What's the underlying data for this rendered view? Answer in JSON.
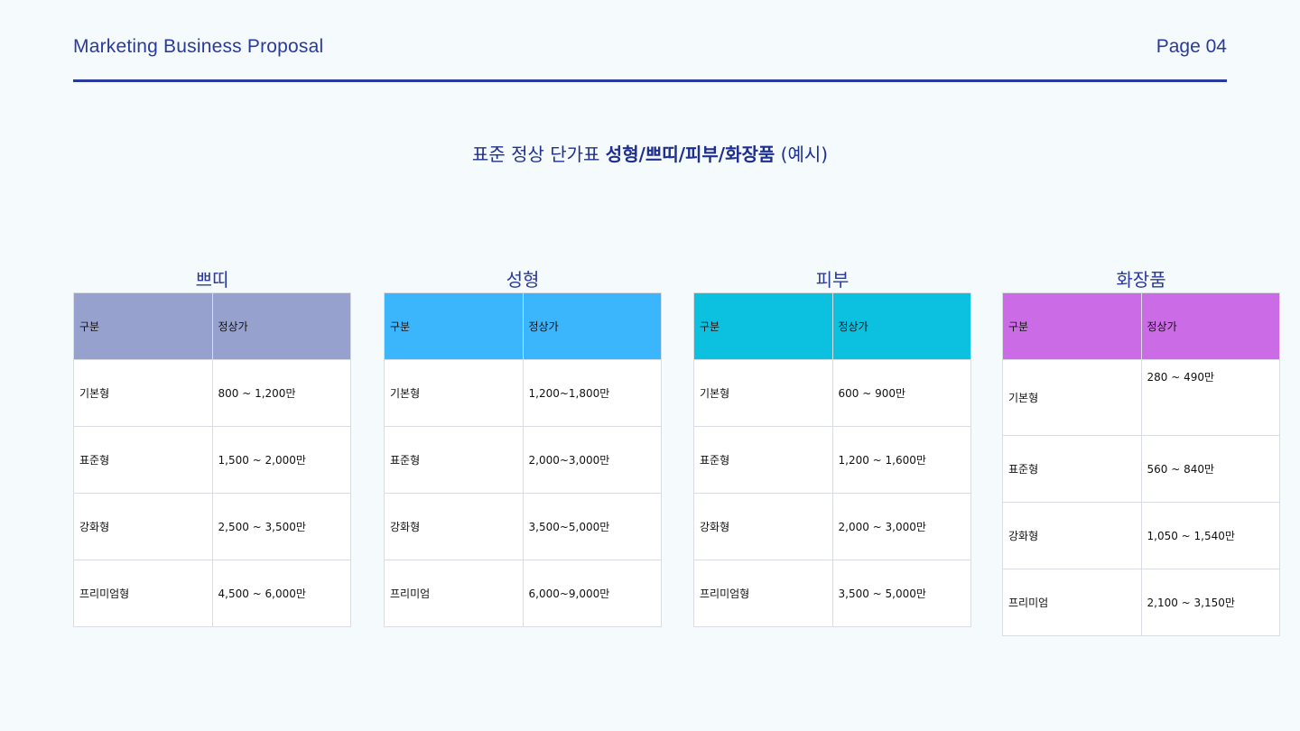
{
  "header": {
    "title": "Marketing Business Proposal",
    "page": "Page 04"
  },
  "page_title": {
    "prefix": "표준 정상 단가표 ",
    "emphasis": "성형/쁘띠/피부/화장품",
    "suffix": " (예시)"
  },
  "tables": [
    {
      "title": "쁘띠",
      "header_color": "#97a1cd",
      "columns": [
        "구분",
        "정상가"
      ],
      "rows": [
        [
          "기본형",
          "800 ~ 1,200만"
        ],
        [
          "표준형",
          "1,500 ~ 2,000만"
        ],
        [
          "강화형",
          "2,500 ~ 3,500만"
        ],
        [
          "프리미엄형",
          "4,500 ~ 6,000만"
        ]
      ]
    },
    {
      "title": "성형",
      "header_color": "#3bb5fb",
      "columns": [
        "구분",
        "정상가"
      ],
      "rows": [
        [
          "기본형",
          "1,200~1,800만"
        ],
        [
          "표준형",
          "2,000~3,000만"
        ],
        [
          "강화형",
          "3,500~5,000만"
        ],
        [
          "프리미엄",
          "6,000~9,000만"
        ]
      ]
    },
    {
      "title": "피부",
      "header_color": "#0cc0df",
      "columns": [
        "구분",
        "정상가"
      ],
      "rows": [
        [
          "기본형",
          "600 ~ 900만"
        ],
        [
          "표준형",
          "1,200 ~ 1,600만"
        ],
        [
          "강화형",
          "2,000 ~ 3,000만"
        ],
        [
          "프리미엄형",
          "3,500 ~ 5,000만"
        ]
      ]
    },
    {
      "title": "화장품",
      "header_color": "#cb6ce6",
      "columns": [
        "구분",
        "정상가"
      ],
      "rows": [
        [
          "기본형",
          "280 ~ 490만"
        ],
        [
          "표준형",
          "560 ~ 840만"
        ],
        [
          "강화형",
          "1,050 ~ 1,540만"
        ],
        [
          "프리미엄",
          "2,100 ~ 3,150만"
        ]
      ]
    }
  ]
}
